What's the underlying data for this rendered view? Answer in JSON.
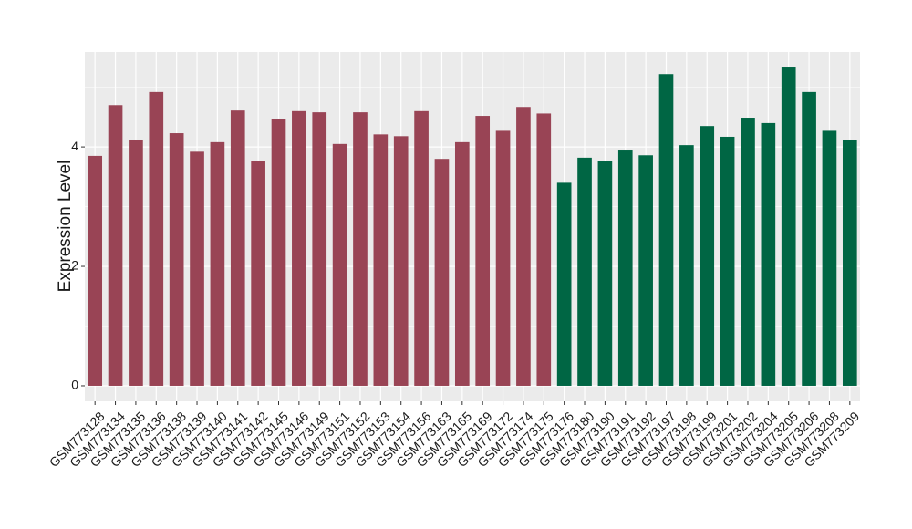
{
  "chart_data": {
    "type": "bar",
    "y_label": "Expression Level",
    "categories": [
      "GSM773128",
      "GSM773134",
      "GSM773135",
      "GSM773136",
      "GSM773138",
      "GSM773139",
      "GSM773140",
      "GSM773141",
      "GSM773142",
      "GSM773145",
      "GSM773146",
      "GSM773149",
      "GSM773151",
      "GSM773152",
      "GSM773153",
      "GSM773154",
      "GSM773156",
      "GSM773163",
      "GSM773165",
      "GSM773169",
      "GSM773172",
      "GSM773174",
      "GSM773175",
      "GSM773176",
      "GSM773180",
      "GSM773190",
      "GSM773191",
      "GSM773192",
      "GSM773197",
      "GSM773198",
      "GSM773199",
      "GSM773201",
      "GSM773202",
      "GSM773204",
      "GSM773205",
      "GSM773206",
      "GSM773208",
      "GSM773209"
    ],
    "values": [
      3.85,
      4.7,
      4.11,
      4.92,
      4.23,
      3.92,
      4.08,
      4.61,
      3.77,
      4.46,
      4.6,
      4.58,
      4.05,
      4.58,
      4.21,
      4.18,
      4.6,
      3.8,
      4.08,
      4.52,
      4.27,
      4.67,
      4.56,
      3.4,
      3.82,
      3.77,
      3.94,
      3.86,
      5.22,
      4.03,
      4.35,
      4.17,
      4.49,
      4.4,
      5.33,
      4.92,
      4.27,
      4.12
    ],
    "colors": [
      "#994455",
      "#994455",
      "#994455",
      "#994455",
      "#994455",
      "#994455",
      "#994455",
      "#994455",
      "#994455",
      "#994455",
      "#994455",
      "#994455",
      "#994455",
      "#994455",
      "#994455",
      "#994455",
      "#994455",
      "#994455",
      "#994455",
      "#994455",
      "#994455",
      "#994455",
      "#994455",
      "#006644",
      "#006644",
      "#006644",
      "#006644",
      "#006644",
      "#006644",
      "#006644",
      "#006644",
      "#006644",
      "#006644",
      "#006644",
      "#006644",
      "#006644",
      "#006644",
      "#006644"
    ],
    "ylim": [
      -0.26,
      5.59
    ],
    "yticks": [
      0,
      2,
      4
    ],
    "y_minor_ticks": [
      1,
      3,
      5
    ],
    "grid": true
  }
}
